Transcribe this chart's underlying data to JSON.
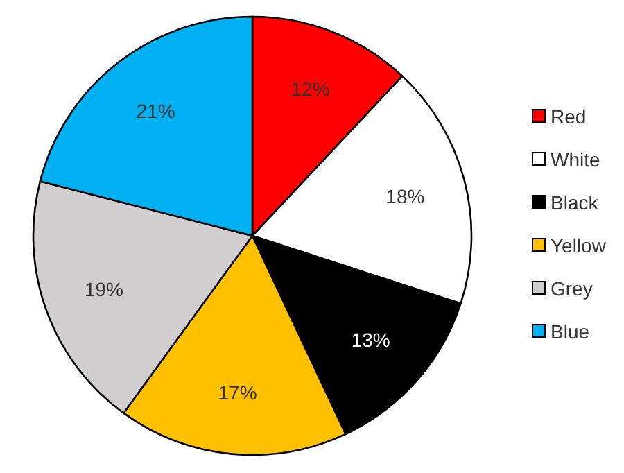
{
  "chart_data": {
    "type": "pie",
    "categories": [
      "Red",
      "White",
      "Black",
      "Yellow",
      "Grey",
      "Blue"
    ],
    "values": [
      12,
      18,
      13,
      17,
      19,
      21
    ],
    "colors": [
      "#ff0000",
      "#ffffff",
      "#000000",
      "#ffc000",
      "#d0cece",
      "#00b0f0"
    ],
    "value_labels": [
      "12%",
      "18%",
      "13%",
      "17%",
      "19%",
      "21%"
    ],
    "legend": "right"
  }
}
